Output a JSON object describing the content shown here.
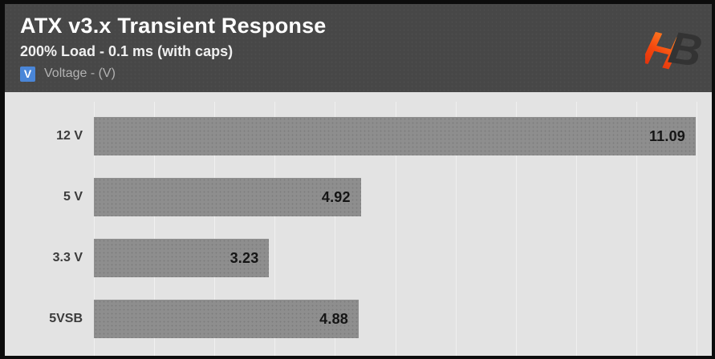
{
  "header": {
    "title": "ATX v3.x Transient Response",
    "subtitle": "200% Load - 0.1 ms (with caps)",
    "legend": {
      "symbol": "V",
      "label": "Voltage - (V)",
      "color": "#4a86d8"
    },
    "logo": {
      "h": "H",
      "b": "B"
    }
  },
  "chart_data": {
    "type": "bar",
    "orientation": "horizontal",
    "title": "ATX v3.x Transient Response",
    "subtitle": "200% Load - 0.1 ms (with caps)",
    "legend": [
      "Voltage - (V)"
    ],
    "categories": [
      "12 V",
      "5 V",
      "3.3 V",
      "5VSB"
    ],
    "values": [
      11.09,
      4.92,
      3.23,
      4.88
    ],
    "value_labels": [
      "11.09",
      "4.92",
      "3.23",
      "4.88"
    ],
    "xlim": [
      0,
      11.09
    ],
    "grid": true,
    "grid_divisions": 10,
    "legend_position": "top-left"
  },
  "colors": {
    "frame_border": "#0c0c0c",
    "header_bg": "#474747",
    "chart_bg": "#e3e3e3",
    "gridline": "#f0f0f0",
    "bar": "#8e8e8e",
    "value_text": "#151515",
    "category_text": "#3b3b3b",
    "legend_blue": "#4a86d8",
    "logo_orange_bottom": "#d9250b",
    "logo_orange_top": "#ff8c28",
    "logo_dark": "#333333"
  }
}
